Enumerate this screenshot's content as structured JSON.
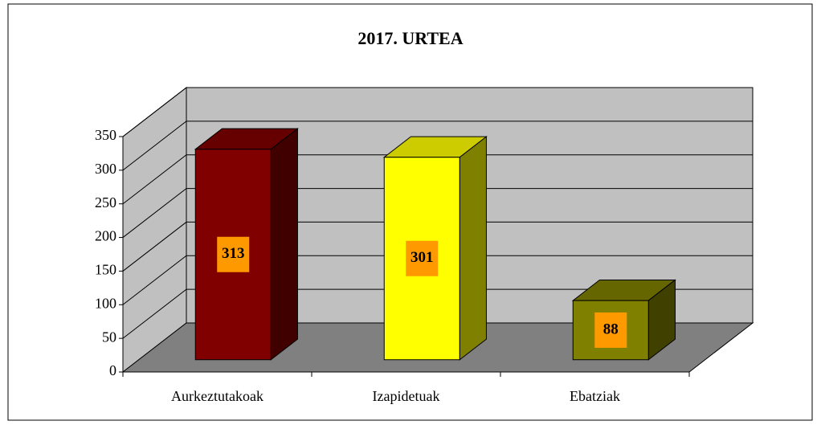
{
  "chart_data": {
    "type": "bar3d",
    "title": "2017. URTEA",
    "categories": [
      "Aurkeztutakoak",
      "Izapidetuak",
      "Ebatziak"
    ],
    "values": [
      313,
      301,
      88
    ],
    "colors": [
      "#800000",
      "#ffff00",
      "#808000"
    ],
    "ylim": [
      0,
      350
    ],
    "yticks": [
      0,
      50,
      100,
      150,
      200,
      250,
      300,
      350
    ],
    "grid": true
  }
}
